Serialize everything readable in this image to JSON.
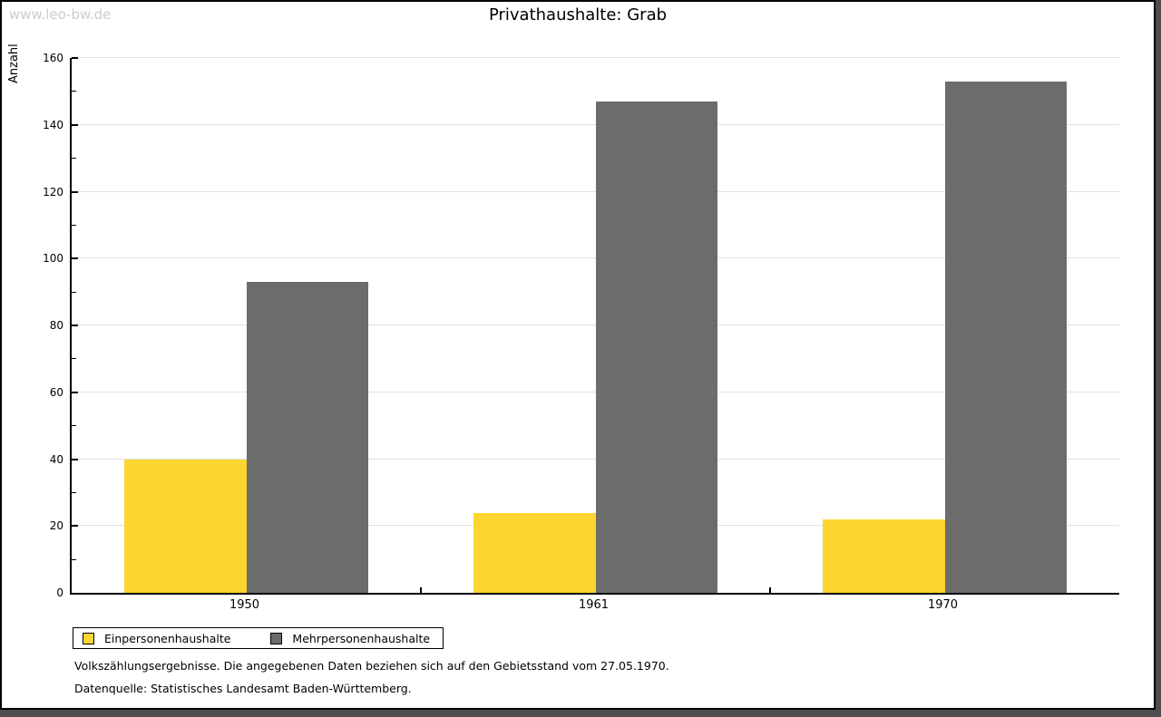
{
  "watermark": "www.leo-bw.de",
  "title": "Privathaushalte: Grab",
  "chart_data": {
    "type": "bar",
    "title": "Privathaushalte: Grab",
    "xlabel": "",
    "ylabel": "Anzahl",
    "categories": [
      "1950",
      "1961",
      "1970"
    ],
    "series": [
      {
        "name": "Einpersonenhaushalte",
        "color": "#FDD530",
        "values": [
          40,
          24,
          22
        ]
      },
      {
        "name": "Mehrpersonenhaushalte",
        "color": "#6C6C6C",
        "values": [
          93,
          147,
          153
        ]
      }
    ],
    "ylim": [
      0,
      160
    ],
    "ytick_step": 20,
    "ytick_minor_step": 10,
    "grid": true,
    "legend_position": "bottom-left"
  },
  "footnotes": {
    "line1": "Volkszählungsergebnisse. Die angegebenen Daten beziehen sich auf den Gebietsstand vom 27.05.1970.",
    "line2": "Datenquelle: Statistisches Landesamt Baden-Württemberg."
  },
  "colors": {
    "axis": "#000000",
    "grid": "#e0e0e0",
    "background": "#ffffff",
    "frame_shadow": "#4d4d4d",
    "watermark": "#cccccc"
  }
}
